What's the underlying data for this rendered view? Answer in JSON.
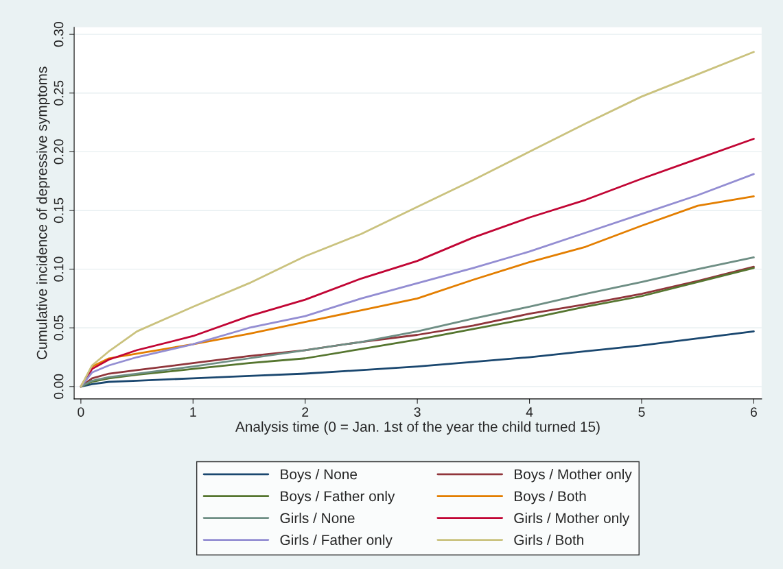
{
  "chart_data": {
    "type": "line",
    "xlabel": "Analysis time (0 = Jan. 1st of the year the child turned 15)",
    "ylabel": "Cumulative incidence of depressive symptoms",
    "x": [
      0,
      0.1,
      0.25,
      0.5,
      1,
      1.5,
      2,
      2.5,
      3,
      3.5,
      4,
      4.5,
      5,
      5.5,
      6
    ],
    "series": [
      {
        "name": "Boys / None",
        "color": "#1a476f",
        "values": [
          0,
          0.002,
          0.004,
          0.005,
          0.007,
          0.009,
          0.011,
          0.014,
          0.017,
          0.021,
          0.025,
          0.03,
          0.035,
          0.041,
          0.047
        ]
      },
      {
        "name": "Boys / Mother only",
        "color": "#90353b",
        "values": [
          0,
          0.007,
          0.011,
          0.014,
          0.02,
          0.026,
          0.031,
          0.038,
          0.044,
          0.052,
          0.062,
          0.07,
          0.079,
          0.09,
          0.102
        ]
      },
      {
        "name": "Boys / Father only",
        "color": "#55752f",
        "values": [
          0,
          0.004,
          0.007,
          0.01,
          0.015,
          0.02,
          0.024,
          0.032,
          0.04,
          0.049,
          0.058,
          0.068,
          0.077,
          0.089,
          0.101
        ]
      },
      {
        "name": "Boys / Both",
        "color": "#e37e00",
        "values": [
          0,
          0.017,
          0.024,
          0.028,
          0.036,
          0.045,
          0.055,
          0.065,
          0.075,
          0.091,
          0.106,
          0.119,
          0.137,
          0.154,
          0.162
        ]
      },
      {
        "name": "Girls / None",
        "color": "#6e8e84",
        "values": [
          0,
          0.005,
          0.008,
          0.011,
          0.017,
          0.024,
          0.031,
          0.038,
          0.047,
          0.058,
          0.068,
          0.079,
          0.089,
          0.1,
          0.11
        ]
      },
      {
        "name": "Girls / Mother only",
        "color": "#c10534",
        "values": [
          0,
          0.015,
          0.023,
          0.031,
          0.043,
          0.06,
          0.074,
          0.092,
          0.107,
          0.127,
          0.144,
          0.159,
          0.177,
          0.194,
          0.211
        ]
      },
      {
        "name": "Girls / Father only",
        "color": "#938dd2",
        "values": [
          0,
          0.012,
          0.018,
          0.025,
          0.036,
          0.05,
          0.06,
          0.075,
          0.088,
          0.101,
          0.115,
          0.131,
          0.147,
          0.163,
          0.181
        ]
      },
      {
        "name": "Girls / Both",
        "color": "#cac27e",
        "values": [
          0,
          0.018,
          0.03,
          0.047,
          0.068,
          0.088,
          0.111,
          0.13,
          0.153,
          0.176,
          0.2,
          0.224,
          0.247,
          0.266,
          0.285
        ]
      }
    ],
    "xlim": [
      -0.06,
      6.07
    ],
    "ylim": [
      -0.0105,
      0.306
    ],
    "xticks": [
      0,
      1,
      2,
      3,
      4,
      5,
      6
    ],
    "yticks": [
      {
        "value": 0,
        "label": "0.00"
      },
      {
        "value": 0.05,
        "label": "0.05"
      },
      {
        "value": 0.1,
        "label": "0.10"
      },
      {
        "value": 0.15,
        "label": "0.15"
      },
      {
        "value": 0.2,
        "label": "0.20"
      },
      {
        "value": 0.25,
        "label": "0.25"
      },
      {
        "value": 0.3,
        "label": "0.30"
      }
    ],
    "grid": "y",
    "legend": "bottom"
  }
}
